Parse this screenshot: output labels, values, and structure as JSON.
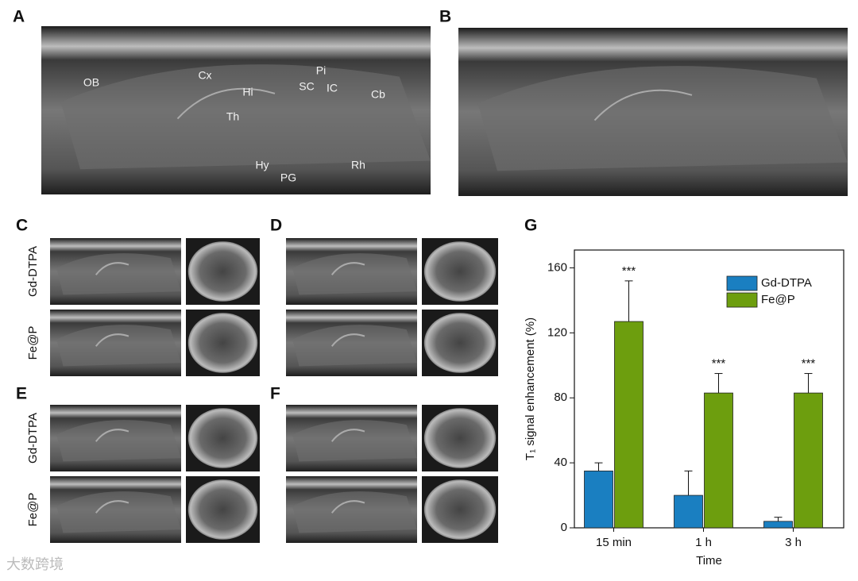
{
  "panel_labels": [
    "A",
    "B",
    "C",
    "D",
    "E",
    "F",
    "G"
  ],
  "brain_labels": [
    "OB",
    "Cx",
    "Hi",
    "Th",
    "SC",
    "Pi",
    "IC",
    "Cb",
    "Hy",
    "PG",
    "Rh"
  ],
  "row_labels": [
    "Gd-DTPA",
    "Fe@P"
  ],
  "watermark": "大数跨境",
  "chart_data": {
    "type": "bar",
    "y_label": "T₁ signal enhancement (%)",
    "x_label": "Time",
    "categories": [
      "15 min",
      "1 h",
      "3 h"
    ],
    "series": [
      {
        "name": "Gd-DTPA",
        "color": "#1a7fc1",
        "values": [
          35,
          20,
          4
        ],
        "errors": [
          5,
          15,
          2.5
        ]
      },
      {
        "name": "Fe@P",
        "color": "#6d9e0e",
        "values": [
          127,
          83,
          83
        ],
        "errors": [
          25,
          12,
          12
        ],
        "value_labels": [
          "***",
          "***",
          "***"
        ]
      }
    ],
    "ylim": [
      0,
      171
    ],
    "yticks": [
      0,
      40,
      80,
      120,
      160
    ],
    "legend": "upper right"
  }
}
